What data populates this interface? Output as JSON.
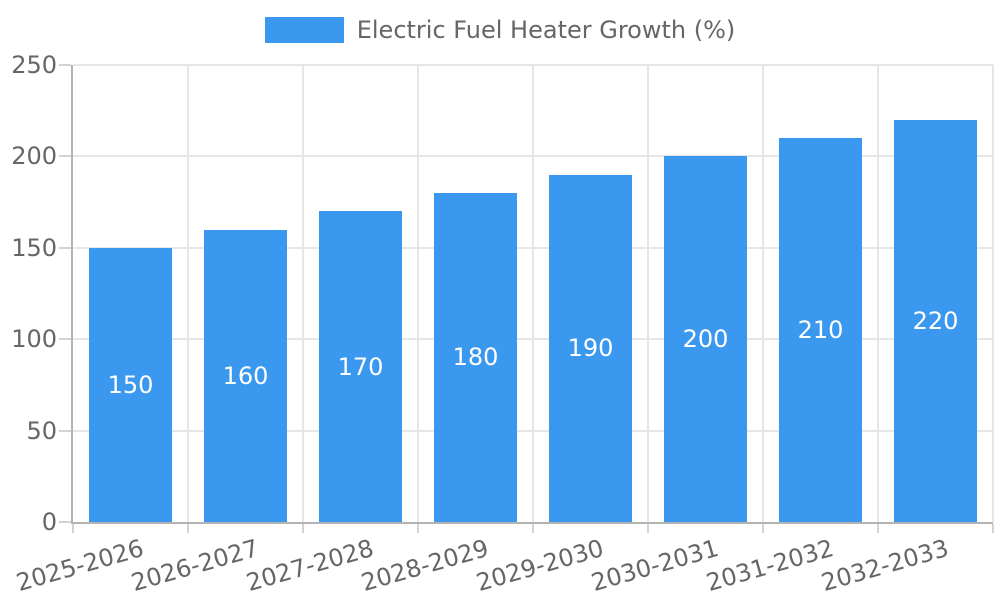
{
  "chart_data": {
    "type": "bar",
    "title": "Electric Fuel Heater Growth (%)",
    "legend_label": "Electric Fuel Heater Growth (%)",
    "legend_position": "top",
    "categories": [
      "2025-2026",
      "2026-2027",
      "2027-2028",
      "2028-2029",
      "2029-2030",
      "2030-2031",
      "2031-2032",
      "2032-2033"
    ],
    "series": [
      {
        "name": "Electric Fuel Heater Growth (%)",
        "values": [
          150,
          160,
          170,
          180,
          190,
          200,
          210,
          220
        ]
      }
    ],
    "values": [
      150,
      160,
      170,
      180,
      190,
      200,
      210,
      220
    ],
    "data_labels": [
      "150",
      "160",
      "170",
      "180",
      "190",
      "200",
      "210",
      "220"
    ],
    "xlabel": "",
    "ylabel": "",
    "ylim": [
      0,
      250
    ],
    "yticks": [
      0,
      50,
      100,
      150,
      200,
      250
    ],
    "grid": true,
    "x_label_rotation_deg": -16,
    "colors": {
      "bar": "#3a99ee",
      "axis_text": "#666666",
      "grid": "#e6e6e6",
      "axis_line": "#b3b3b3",
      "tick_mark": "#d2d2d2",
      "data_label": "#ffffff",
      "background": "#ffffff"
    }
  }
}
